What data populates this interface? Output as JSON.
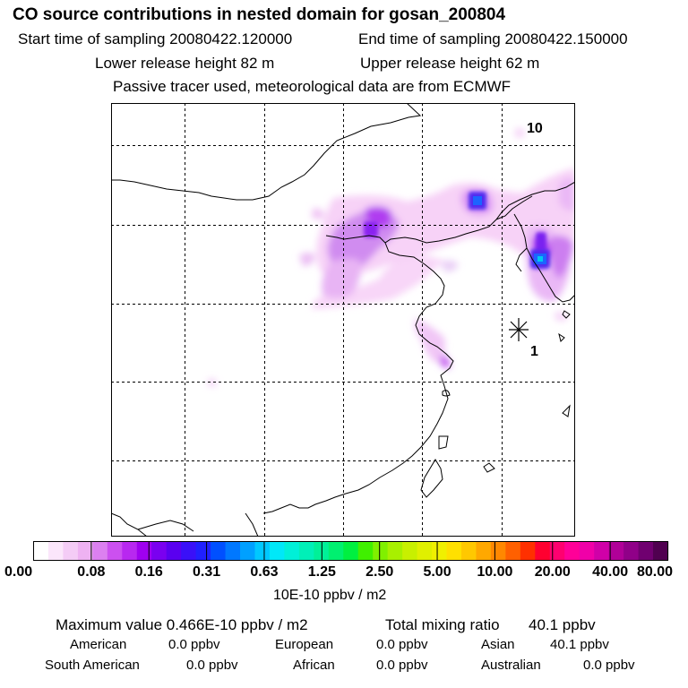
{
  "header": {
    "title": "CO  source contributions in nested domain for gosan_200804",
    "start_label": "Start time of sampling 20080422.120000",
    "end_label": "End time of sampling 20080422.150000",
    "lower_label": "Lower release height   82 m",
    "upper_label": "Upper release height   62 m",
    "info": "Passive tracer used, meteorological data are from ECMWF"
  },
  "map": {
    "markers": {
      "receptor_label": "1",
      "label_10": "10"
    }
  },
  "colorbar": {
    "ticks": [
      "0.00",
      "0.08",
      "0.16",
      "0.31",
      "0.63",
      "1.25",
      "2.50",
      "5.00",
      "10.00",
      "20.00",
      "40.00",
      "80.00"
    ],
    "unit": "10E-10 ppbv / m2",
    "colors": [
      "#ffffff",
      "#fbe6fb",
      "#f4ccf6",
      "#eeb2f2",
      "#dc80f0",
      "#cc50f0",
      "#b828f0",
      "#9f00f0",
      "#7a00f0",
      "#5a00f0",
      "#3a10f8",
      "#2020ff",
      "#0050ff",
      "#0078ff",
      "#00a0ff",
      "#00c8ff",
      "#00e8f8",
      "#00f0d8",
      "#00f0b8",
      "#00f098",
      "#00f070",
      "#00f040",
      "#40f000",
      "#80f000",
      "#a8f000",
      "#c8f000",
      "#e0f000",
      "#f0f000",
      "#ffe000",
      "#ffc800",
      "#ffa800",
      "#ff8800",
      "#ff6000",
      "#ff3000",
      "#ff0030",
      "#ff0070",
      "#ff0098",
      "#f000a8",
      "#d000a8",
      "#b00098",
      "#900088",
      "#700070",
      "#500050"
    ]
  },
  "summary": {
    "max_label": "Maximum value  0.466E-10 ppbv / m2",
    "total_label": "Total mixing ratio",
    "total_value": "40.1 ppbv",
    "american_label": "American",
    "american_value": "0.0 ppbv",
    "european_label": "European",
    "european_value": "0.0 ppbv",
    "asian_label": "Asian",
    "asian_value": "40.1 ppbv",
    "south_american_label": "South American",
    "south_american_value": "0.0 ppbv",
    "african_label": "African",
    "african_value": "0.0 ppbv",
    "australian_label": "Australian",
    "australian_value": "0.0 ppbv"
  }
}
